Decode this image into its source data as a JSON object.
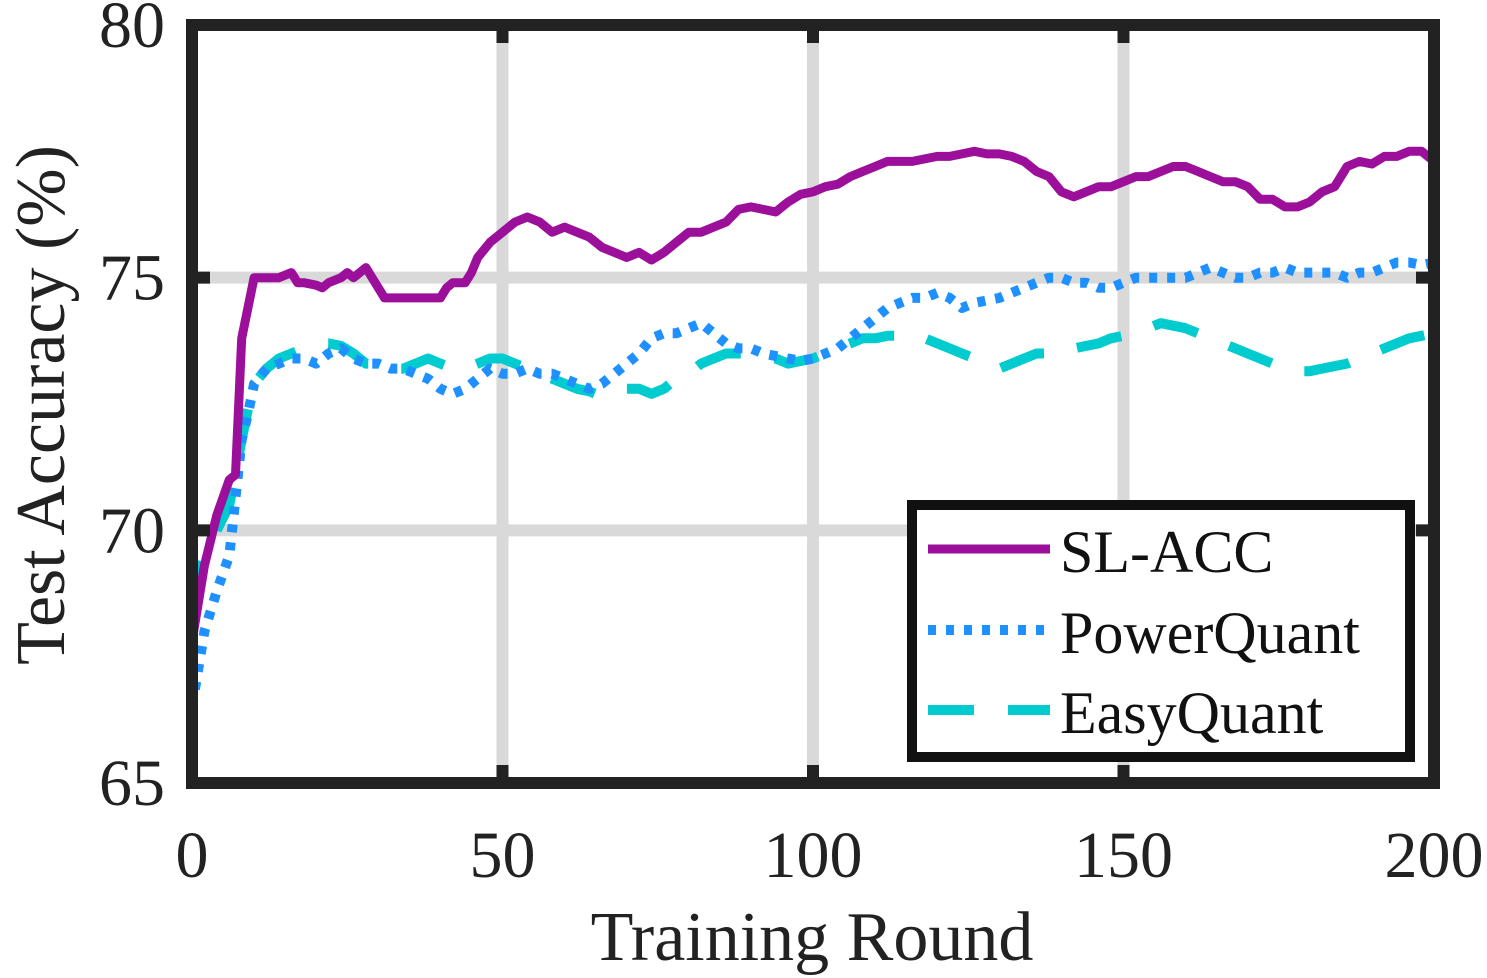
{
  "chart_data": {
    "type": "line",
    "title": "",
    "xlabel": "Training Round",
    "ylabel": "Test Accuracy (%)",
    "xlim": [
      0,
      200
    ],
    "ylim": [
      65,
      80
    ],
    "xticks": [
      0,
      50,
      100,
      150,
      200
    ],
    "yticks": [
      65,
      70,
      75,
      80
    ],
    "xtick_labels": [
      "0",
      "50",
      "100",
      "150",
      "200"
    ],
    "ytick_labels": [
      "65",
      "70",
      "75",
      "80"
    ],
    "grid": true,
    "legend_position": "bottom-right",
    "series": [
      {
        "name": "SL-ACC",
        "color": "#9b0f9b",
        "style": "solid",
        "x": [
          0,
          2,
          4,
          6,
          7,
          8,
          9,
          10,
          11,
          12,
          14,
          16,
          17,
          18,
          20,
          21,
          22,
          24,
          25,
          26,
          28,
          29,
          30,
          31,
          32,
          34,
          36,
          38,
          40,
          41,
          42,
          44,
          45,
          46,
          48,
          50,
          52,
          54,
          56,
          58,
          60,
          62,
          64,
          66,
          68,
          70,
          72,
          74,
          76,
          78,
          80,
          82,
          84,
          86,
          88,
          90,
          92,
          94,
          96,
          98,
          100,
          102,
          104,
          106,
          108,
          110,
          112,
          114,
          116,
          118,
          120,
          122,
          124,
          126,
          128,
          130,
          132,
          134,
          136,
          138,
          140,
          142,
          144,
          146,
          148,
          150,
          152,
          154,
          156,
          158,
          160,
          162,
          164,
          166,
          168,
          170,
          172,
          174,
          176,
          178,
          180,
          182,
          184,
          186,
          188,
          190,
          192,
          194,
          196,
          198,
          200
        ],
        "y": [
          67.8,
          69.3,
          70.3,
          71.0,
          71.1,
          73.8,
          74.4,
          75.0,
          75.0,
          75.0,
          75.0,
          75.1,
          74.9,
          74.9,
          74.85,
          74.8,
          74.9,
          75.0,
          75.1,
          75.0,
          75.2,
          75.0,
          74.8,
          74.6,
          74.6,
          74.6,
          74.6,
          74.6,
          74.6,
          74.8,
          74.9,
          74.9,
          75.1,
          75.4,
          75.7,
          75.9,
          76.1,
          76.2,
          76.1,
          75.9,
          76.0,
          75.9,
          75.8,
          75.6,
          75.5,
          75.4,
          75.5,
          75.35,
          75.5,
          75.7,
          75.9,
          75.9,
          76.0,
          76.1,
          76.35,
          76.4,
          76.35,
          76.3,
          76.5,
          76.65,
          76.7,
          76.8,
          76.85,
          77.0,
          77.1,
          77.2,
          77.3,
          77.3,
          77.3,
          77.35,
          77.4,
          77.4,
          77.45,
          77.5,
          77.45,
          77.45,
          77.4,
          77.3,
          77.1,
          77.0,
          76.7,
          76.6,
          76.7,
          76.8,
          76.8,
          76.9,
          77.0,
          77.0,
          77.1,
          77.2,
          77.2,
          77.1,
          77.0,
          76.9,
          76.9,
          76.8,
          76.55,
          76.55,
          76.4,
          76.4,
          76.5,
          76.7,
          76.8,
          77.2,
          77.3,
          77.25,
          77.4,
          77.4,
          77.5,
          77.5,
          77.3
        ]
      },
      {
        "name": "PowerQuant",
        "color": "#1e90ff",
        "style": "dotted",
        "x": [
          0,
          2,
          4,
          6,
          8,
          9,
          10,
          12,
          14,
          16,
          18,
          20,
          22,
          24,
          26,
          28,
          30,
          32,
          34,
          36,
          38,
          40,
          42,
          44,
          46,
          48,
          50,
          52,
          54,
          56,
          58,
          60,
          62,
          64,
          66,
          68,
          70,
          72,
          74,
          76,
          78,
          80,
          82,
          84,
          86,
          88,
          90,
          92,
          94,
          96,
          98,
          100,
          102,
          104,
          106,
          108,
          110,
          112,
          114,
          116,
          118,
          120,
          122,
          124,
          126,
          128,
          130,
          132,
          134,
          136,
          138,
          140,
          142,
          144,
          146,
          148,
          150,
          152,
          154,
          156,
          158,
          160,
          162,
          164,
          166,
          168,
          170,
          172,
          174,
          176,
          178,
          180,
          182,
          184,
          186,
          188,
          190,
          192,
          194,
          196,
          198,
          200
        ],
        "y": [
          66.5,
          68.0,
          68.8,
          69.5,
          71.8,
          72.3,
          72.9,
          73.2,
          73.3,
          73.4,
          73.4,
          73.3,
          73.5,
          73.6,
          73.4,
          73.3,
          73.3,
          73.2,
          73.2,
          73.1,
          73.0,
          72.8,
          72.7,
          72.8,
          73.0,
          73.2,
          73.1,
          73.1,
          73.2,
          73.1,
          73.1,
          73.0,
          72.9,
          72.8,
          72.9,
          73.1,
          73.3,
          73.5,
          73.8,
          73.9,
          73.9,
          74.0,
          74.1,
          73.9,
          73.7,
          73.6,
          73.6,
          73.5,
          73.45,
          73.4,
          73.35,
          73.4,
          73.5,
          73.6,
          73.8,
          74.0,
          74.2,
          74.4,
          74.5,
          74.6,
          74.6,
          74.7,
          74.6,
          74.4,
          74.5,
          74.55,
          74.6,
          74.7,
          74.8,
          74.9,
          75.0,
          75.0,
          74.9,
          74.9,
          74.8,
          74.8,
          74.9,
          75.0,
          75.0,
          75.0,
          75.0,
          75.0,
          75.1,
          75.2,
          75.1,
          75.0,
          75.0,
          75.1,
          75.1,
          75.2,
          75.1,
          75.1,
          75.1,
          75.1,
          75.0,
          75.1,
          75.1,
          75.2,
          75.3,
          75.3,
          75.25,
          75.3
        ]
      },
      {
        "name": "EasyQuant",
        "color": "#00ccd0",
        "style": "dashed",
        "x": [
          0,
          2,
          4,
          6,
          8,
          9,
          10,
          12,
          14,
          16,
          18,
          20,
          22,
          24,
          26,
          28,
          30,
          32,
          34,
          36,
          38,
          40,
          42,
          44,
          46,
          48,
          50,
          52,
          54,
          56,
          58,
          60,
          62,
          64,
          66,
          68,
          70,
          72,
          74,
          76,
          78,
          80,
          82,
          84,
          86,
          88,
          90,
          92,
          94,
          96,
          98,
          100,
          102,
          104,
          106,
          108,
          110,
          112,
          114,
          116,
          118,
          120,
          122,
          124,
          126,
          128,
          130,
          132,
          134,
          136,
          138,
          140,
          142,
          144,
          146,
          148,
          150,
          152,
          154,
          156,
          158,
          160,
          162,
          164,
          166,
          168,
          170,
          172,
          174,
          176,
          178,
          180,
          182,
          184,
          186,
          188,
          190,
          192,
          194,
          196,
          198,
          200
        ],
        "y": [
          68.5,
          69.5,
          70.0,
          70.5,
          71.8,
          72.4,
          72.9,
          73.2,
          73.4,
          73.5,
          73.6,
          73.7,
          73.7,
          73.65,
          73.5,
          73.3,
          73.3,
          73.2,
          73.2,
          73.3,
          73.4,
          73.3,
          73.2,
          73.2,
          73.3,
          73.4,
          73.4,
          73.3,
          73.2,
          73.1,
          73.0,
          72.9,
          72.8,
          72.75,
          72.65,
          72.7,
          72.8,
          72.8,
          72.7,
          72.8,
          73.0,
          73.1,
          73.3,
          73.4,
          73.5,
          73.5,
          73.5,
          73.4,
          73.4,
          73.3,
          73.35,
          73.4,
          73.5,
          73.6,
          73.7,
          73.8,
          73.8,
          73.85,
          73.85,
          73.9,
          73.8,
          73.7,
          73.6,
          73.5,
          73.4,
          73.3,
          73.2,
          73.3,
          73.4,
          73.5,
          73.5,
          73.5,
          73.6,
          73.65,
          73.7,
          73.8,
          73.85,
          73.9,
          74.0,
          74.1,
          74.05,
          74.0,
          73.9,
          73.8,
          73.7,
          73.6,
          73.5,
          73.4,
          73.3,
          73.2,
          73.15,
          73.15,
          73.2,
          73.25,
          73.3,
          73.4,
          73.5,
          73.6,
          73.7,
          73.8,
          73.85,
          73.9
        ]
      }
    ]
  }
}
